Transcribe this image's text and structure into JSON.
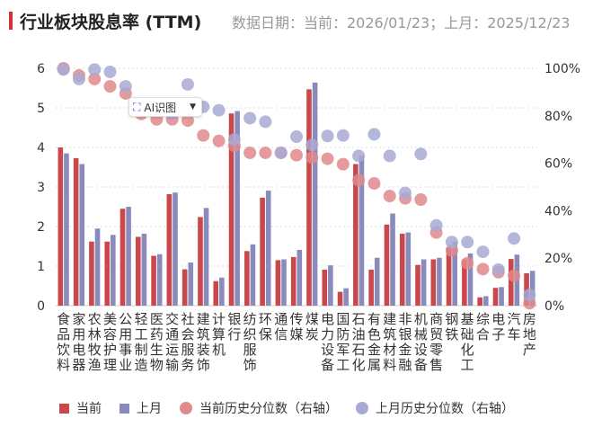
{
  "header": {
    "title": "行业板块股息率 (TTM)",
    "subtitle": "数据日期：当前：2026/01/23；上月：2025/12/23"
  },
  "popup": {
    "label": "AI识图",
    "icon": "ai-scan-icon"
  },
  "colors": {
    "current": "#c9484b",
    "last": "#8a8bbd",
    "current_dot": "#e08a8c",
    "last_dot": "#a8aad3"
  },
  "chart_data": {
    "type": "bar",
    "title": "行业板块股息率 (TTM)",
    "categories": [
      "食品饮料",
      "家用电器",
      "农林牧渔",
      "美容护理",
      "公用事业",
      "轻工制造",
      "医药生物",
      "交通运输",
      "社会服务",
      "建筑装饰",
      "计算机",
      "银行",
      "纺织服饰",
      "环保",
      "通信",
      "传媒",
      "煤炭",
      "电力设备",
      "国防军工",
      "石油石化",
      "有色金属",
      "建筑材料",
      "非银金融",
      "机械设备",
      "商贸零售",
      "钢铁",
      "基础化工",
      "综合",
      "电子",
      "汽车",
      "房地产"
    ],
    "series": [
      {
        "name": "当前",
        "type": "bar",
        "axis": "left",
        "values": [
          4.0,
          3.73,
          1.62,
          1.62,
          2.45,
          1.74,
          1.26,
          2.82,
          0.92,
          2.24,
          0.62,
          4.86,
          1.38,
          2.73,
          1.15,
          1.23,
          5.47,
          0.91,
          0.35,
          3.58,
          0.91,
          2.05,
          1.82,
          1.03,
          1.17,
          1.47,
          1.17,
          0.21,
          0.45,
          1.18,
          0.82
        ]
      },
      {
        "name": "上月",
        "type": "bar",
        "axis": "left",
        "values": [
          3.85,
          3.58,
          1.95,
          1.79,
          2.5,
          1.82,
          1.3,
          2.86,
          1.09,
          2.47,
          0.71,
          4.92,
          1.55,
          2.91,
          1.17,
          1.41,
          5.64,
          1.02,
          0.44,
          3.8,
          1.21,
          2.33,
          1.85,
          1.17,
          1.21,
          1.62,
          1.32,
          0.24,
          0.47,
          1.29,
          0.88
        ]
      },
      {
        "name": "当前历史分位数（右轴）",
        "type": "scatter",
        "axis": "right",
        "values": [
          100,
          97,
          95.5,
          92.4,
          89.4,
          80.8,
          78.5,
          78.5,
          78,
          71.7,
          69.4,
          67.4,
          64.4,
          64.4,
          64.4,
          63.4,
          62.4,
          61.9,
          59.6,
          52.8,
          51.5,
          46.2,
          45.2,
          44.7,
          30.8,
          23.2,
          17.9,
          15.4,
          14.1,
          12.6,
          1
        ]
      },
      {
        "name": "上月历史分位数（右轴）",
        "type": "scatter",
        "axis": "right",
        "values": [
          99.5,
          95.5,
          99.5,
          98.5,
          92.4,
          84,
          85,
          81,
          93.2,
          83.8,
          82.3,
          70,
          79,
          77.5,
          64.4,
          71.2,
          67.7,
          71.5,
          71.7,
          63.1,
          72.2,
          63.1,
          47.5,
          63.9,
          33.8,
          26.8,
          26.8,
          22.7,
          15.2,
          28.3,
          4.5
        ]
      }
    ],
    "y_left": {
      "ticks": [
        "0",
        "1",
        "2",
        "3",
        "4",
        "5",
        "6"
      ],
      "range": [
        0,
        6
      ]
    },
    "y_right": {
      "ticks": [
        "0%",
        "20%",
        "40%",
        "60%",
        "80%",
        "100%"
      ],
      "range": [
        0,
        100
      ]
    },
    "grid": true,
    "legend_position": "bottom-left"
  }
}
